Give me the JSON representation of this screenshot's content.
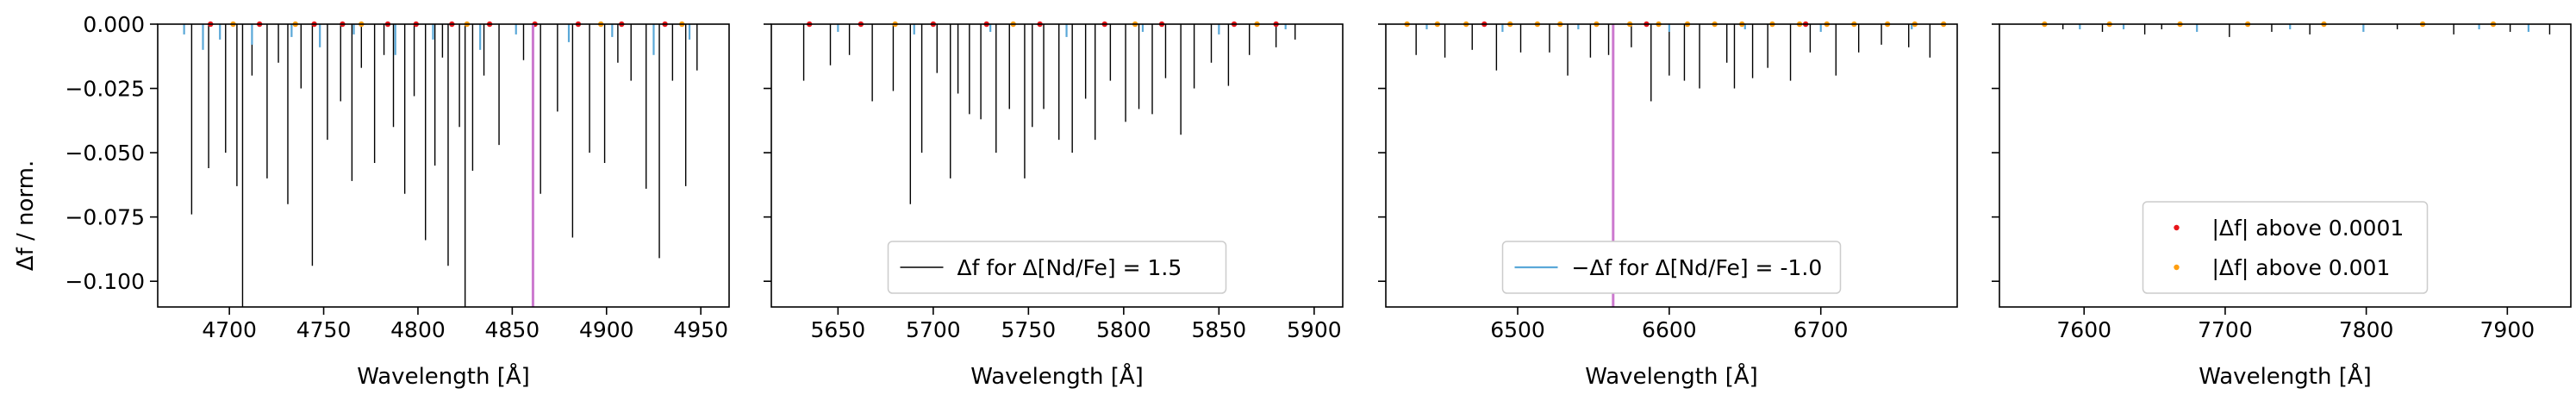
{
  "figure": {
    "ylabel": "Δf / norm.",
    "colors": {
      "positive_line": "#000000",
      "negative_line": "#5aa8d8",
      "marker_above_0_0001": "#e8161a",
      "marker_above_0_001": "#ff9e10",
      "vertical_line": "#cc79cf",
      "axes": "#000000"
    }
  },
  "chart_data": [
    {
      "type": "line",
      "xlabel": "Wavelength [Å]",
      "ylabel": "Δf / norm.",
      "xlim": [
        4662,
        4965
      ],
      "ylim": [
        -0.11,
        0.0
      ],
      "xticks": [
        4700,
        4750,
        4800,
        4850,
        4900,
        4950
      ],
      "xtick_labels": [
        "4700",
        "4750",
        "4800",
        "4850",
        "4900",
        "4950"
      ],
      "yticks": [
        0.0,
        -0.025,
        -0.05,
        -0.075,
        -0.1
      ],
      "ytick_labels": [
        "0.000",
        "−0.025",
        "−0.050",
        "−0.075",
        "−0.100"
      ],
      "vertical_line_x": 4861,
      "legend": null,
      "series": [
        {
          "name": "Δf for Δ[Nd/Fe] = 1.5",
          "role": "positive",
          "x": [
            4680,
            4689,
            4698,
            4704,
            4707,
            4712,
            4720,
            4726,
            4731,
            4738,
            4744,
            4752,
            4759,
            4765,
            4770,
            4777,
            4782,
            4787,
            4793,
            4798,
            4804,
            4809,
            4813,
            4816,
            4822,
            4825,
            4829,
            4835,
            4843,
            4856,
            4865,
            4874,
            4882,
            4891,
            4899,
            4906,
            4913,
            4921,
            4928,
            4935,
            4942,
            4948
          ],
          "y": [
            -0.074,
            -0.056,
            -0.05,
            -0.063,
            -0.11,
            -0.02,
            -0.06,
            -0.015,
            -0.07,
            -0.025,
            -0.094,
            -0.045,
            -0.03,
            -0.061,
            -0.017,
            -0.054,
            -0.012,
            -0.04,
            -0.066,
            -0.028,
            -0.084,
            -0.055,
            -0.013,
            -0.094,
            -0.04,
            -0.11,
            -0.057,
            -0.02,
            -0.047,
            -0.014,
            -0.066,
            -0.034,
            -0.083,
            -0.05,
            -0.054,
            -0.015,
            -0.022,
            -0.064,
            -0.091,
            -0.022,
            -0.063,
            -0.018
          ]
        },
        {
          "name": "−Δf for Δ[Nd/Fe] = -1.0",
          "role": "negative",
          "x": [
            4676,
            4686,
            4695,
            4712,
            4733,
            4748,
            4766,
            4788,
            4808,
            4833,
            4852,
            4880,
            4903,
            4925,
            4944
          ],
          "y": [
            -0.004,
            -0.01,
            -0.006,
            -0.008,
            -0.005,
            -0.009,
            -0.004,
            -0.012,
            -0.006,
            -0.01,
            -0.004,
            -0.007,
            -0.005,
            -0.012,
            -0.006
          ]
        },
        {
          "name": "|Δf| above 0.0001",
          "role": "marker_red",
          "x": [
            4690,
            4716,
            4745,
            4760,
            4784,
            4799,
            4818,
            4838,
            4862,
            4885,
            4908,
            4931
          ],
          "y": [
            0,
            0,
            0,
            0,
            0,
            0,
            0,
            0,
            0,
            0,
            0,
            0
          ]
        },
        {
          "name": "|Δf| above 0.001",
          "role": "marker_orange",
          "x": [
            4702,
            4735,
            4770,
            4826,
            4897,
            4940
          ],
          "y": [
            0,
            0,
            0,
            0,
            0,
            0
          ]
        }
      ]
    },
    {
      "type": "line",
      "xlabel": "Wavelength [Å]",
      "ylabel": "",
      "xlim": [
        5615,
        5915
      ],
      "ylim": [
        -0.11,
        0.0
      ],
      "xticks": [
        5650,
        5700,
        5750,
        5800,
        5850,
        5900
      ],
      "xtick_labels": [
        "5650",
        "5700",
        "5750",
        "5800",
        "5850",
        "5900"
      ],
      "yticks": [
        0.0,
        -0.025,
        -0.05,
        -0.075,
        -0.1
      ],
      "legend": {
        "entries": [
          "Δf for Δ[Nd/Fe] = 1.5"
        ],
        "position": "lower center"
      },
      "series": [
        {
          "name": "Δf for Δ[Nd/Fe] = 1.5",
          "role": "positive",
          "x": [
            5632,
            5646,
            5656,
            5668,
            5679,
            5688,
            5694,
            5702,
            5709,
            5713,
            5719,
            5725,
            5733,
            5740,
            5748,
            5752,
            5758,
            5766,
            5773,
            5780,
            5785,
            5793,
            5801,
            5808,
            5815,
            5822,
            5830,
            5837,
            5846,
            5855,
            5866,
            5880,
            5890
          ],
          "y": [
            -0.022,
            -0.016,
            -0.012,
            -0.03,
            -0.026,
            -0.07,
            -0.05,
            -0.019,
            -0.06,
            -0.027,
            -0.035,
            -0.037,
            -0.05,
            -0.033,
            -0.06,
            -0.04,
            -0.033,
            -0.045,
            -0.05,
            -0.029,
            -0.045,
            -0.022,
            -0.038,
            -0.033,
            -0.035,
            -0.021,
            -0.043,
            -0.025,
            -0.015,
            -0.024,
            -0.012,
            -0.009,
            -0.006
          ]
        },
        {
          "name": "−Δf for Δ[Nd/Fe] = -1.0",
          "role": "negative",
          "x": [
            5650,
            5690,
            5730,
            5770,
            5810,
            5850,
            5885
          ],
          "y": [
            -0.003,
            -0.004,
            -0.003,
            -0.005,
            -0.003,
            -0.004,
            -0.002
          ]
        },
        {
          "name": "|Δf| above 0.0001",
          "role": "marker_red",
          "x": [
            5635,
            5662,
            5700,
            5728,
            5756,
            5790,
            5820,
            5858,
            5880
          ],
          "y": [
            0,
            0,
            0,
            0,
            0,
            0,
            0,
            0,
            0
          ]
        },
        {
          "name": "|Δf| above 0.001",
          "role": "marker_orange",
          "x": [
            5680,
            5742,
            5806,
            5870
          ],
          "y": [
            0,
            0,
            0,
            0
          ]
        }
      ]
    },
    {
      "type": "line",
      "xlabel": "Wavelength [Å]",
      "ylabel": "",
      "xlim": [
        6413,
        6790
      ],
      "ylim": [
        -0.11,
        0.0
      ],
      "xticks": [
        6500,
        6600,
        6700
      ],
      "xtick_labels": [
        "6500",
        "6600",
        "6700"
      ],
      "yticks": [
        0.0,
        -0.025,
        -0.05,
        -0.075,
        -0.1
      ],
      "vertical_line_x": 6563,
      "legend": {
        "entries": [
          "−Δf for Δ[Nd/Fe] = -1.0"
        ],
        "position": "lower center"
      },
      "series": [
        {
          "name": "Δf for Δ[Nd/Fe] = 1.5",
          "role": "positive",
          "x": [
            6433,
            6452,
            6470,
            6486,
            6502,
            6521,
            6533,
            6548,
            6560,
            6575,
            6588,
            6600,
            6610,
            6620,
            6638,
            6643,
            6655,
            6665,
            6680,
            6693,
            6710,
            6725,
            6740,
            6758,
            6772
          ],
          "y": [
            -0.012,
            -0.013,
            -0.01,
            -0.018,
            -0.011,
            -0.011,
            -0.02,
            -0.013,
            -0.012,
            -0.009,
            -0.03,
            -0.02,
            -0.022,
            -0.025,
            -0.015,
            -0.025,
            -0.021,
            -0.017,
            -0.022,
            -0.011,
            -0.02,
            -0.011,
            -0.008,
            -0.009,
            -0.013
          ]
        },
        {
          "name": "−Δf for Δ[Nd/Fe] = -1.0",
          "role": "negative",
          "x": [
            6440,
            6490,
            6540,
            6600,
            6650,
            6700,
            6760
          ],
          "y": [
            -0.002,
            -0.003,
            -0.002,
            -0.003,
            -0.002,
            -0.003,
            -0.002
          ]
        },
        {
          "name": "|Δf| above 0.0001",
          "role": "marker_red",
          "x": [
            6478,
            6585,
            6690
          ],
          "y": [
            0,
            0,
            0
          ]
        },
        {
          "name": "|Δf| above 0.001",
          "role": "marker_orange",
          "x": [
            6427,
            6447,
            6466,
            6495,
            6513,
            6528,
            6552,
            6574,
            6593,
            6612,
            6630,
            6648,
            6668,
            6686,
            6704,
            6722,
            6744,
            6762,
            6781
          ],
          "y": [
            0,
            0,
            0,
            0,
            0,
            0,
            0,
            0,
            0,
            0,
            0,
            0,
            0,
            0,
            0,
            0,
            0,
            0,
            0
          ]
        }
      ]
    },
    {
      "type": "line",
      "xlabel": "Wavelength [Å]",
      "ylabel": "",
      "xlim": [
        7540,
        7945
      ],
      "ylim": [
        -0.11,
        0.0
      ],
      "xticks": [
        7600,
        7700,
        7800,
        7900
      ],
      "xtick_labels": [
        "7600",
        "7700",
        "7800",
        "7900"
      ],
      "yticks": [
        0.0,
        -0.025,
        -0.05,
        -0.075,
        -0.1
      ],
      "legend": {
        "entries": [
          "|Δf| above 0.0001",
          "|Δf| above 0.001"
        ],
        "position": "lower center"
      },
      "series": [
        {
          "name": "Δf for Δ[Nd/Fe] = 1.5",
          "role": "positive",
          "x": [
            7585,
            7613,
            7643,
            7655,
            7703,
            7733,
            7760,
            7822,
            7862,
            7902,
            7930
          ],
          "y": [
            -0.002,
            -0.003,
            -0.004,
            -0.002,
            -0.005,
            -0.003,
            -0.004,
            -0.002,
            -0.004,
            -0.003,
            -0.004
          ]
        },
        {
          "name": "−Δf for Δ[Nd/Fe] = -1.0",
          "role": "negative",
          "x": [
            7597,
            7628,
            7680,
            7746,
            7798,
            7880,
            7915
          ],
          "y": [
            -0.002,
            -0.002,
            -0.003,
            -0.002,
            -0.003,
            -0.002,
            -0.003
          ]
        },
        {
          "name": "|Δf| above 0.0001",
          "role": "marker_red",
          "x": [],
          "y": []
        },
        {
          "name": "|Δf| above 0.001",
          "role": "marker_orange",
          "x": [
            7572,
            7618,
            7668,
            7716,
            7770,
            7840,
            7890
          ],
          "y": [
            0,
            0,
            0,
            0,
            0,
            0,
            0
          ]
        }
      ]
    }
  ]
}
